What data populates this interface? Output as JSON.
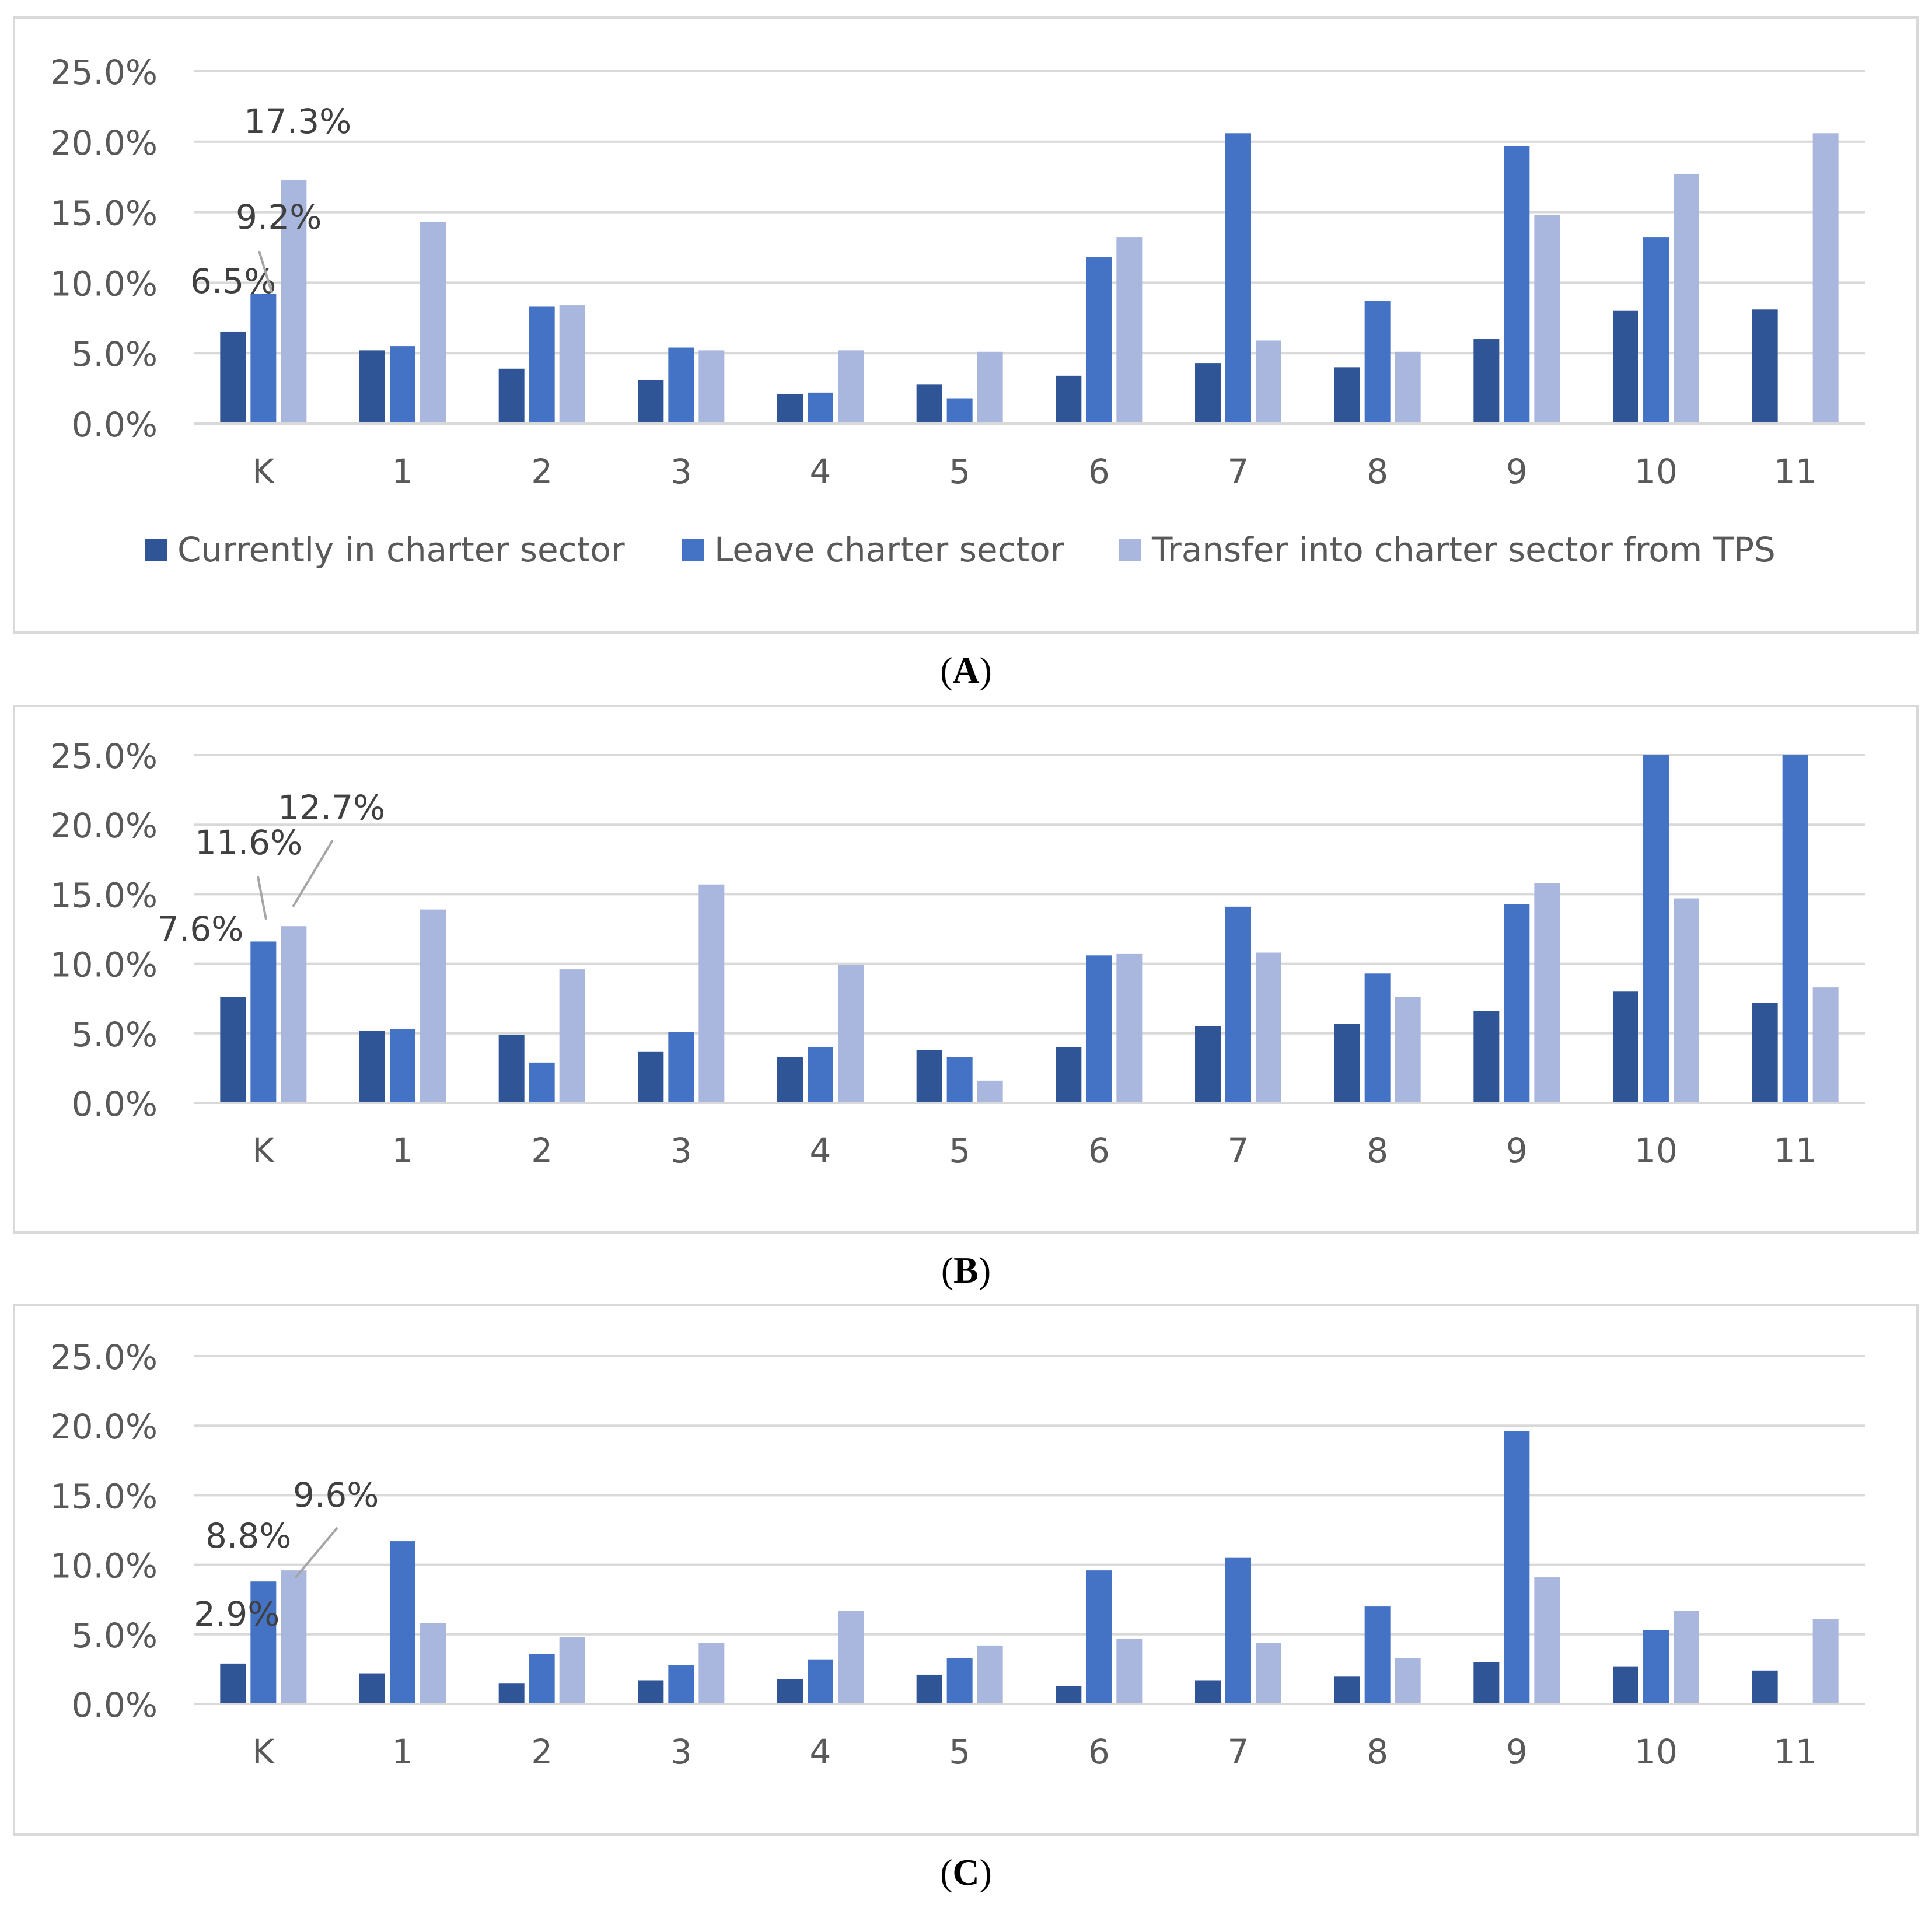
{
  "colors": {
    "current": "#2F5597",
    "leave": "#4472C4",
    "transfer": "#A9B6DD",
    "grid": "#D9D9D9",
    "axis_text": "#595959",
    "label_text": "#404040",
    "leader": "#A6A6A6"
  },
  "legend": {
    "current": "Currently in charter sector",
    "leave": "Leave charter sector",
    "transfer": "Transfer into charter sector from TPS"
  },
  "chart_data": [
    {
      "type": "bar",
      "panel": "A",
      "caption": "A",
      "categories": [
        "K",
        "1",
        "2",
        "3",
        "4",
        "5",
        "6",
        "7",
        "8",
        "9",
        "10",
        "11"
      ],
      "y_ticks": [
        "0.0%",
        "5.0%",
        "10.0%",
        "15.0%",
        "20.0%",
        "25.0%"
      ],
      "ylim": [
        0,
        25
      ],
      "series": [
        {
          "name": "Currently in charter sector",
          "values": [
            6.5,
            5.2,
            3.9,
            3.1,
            2.1,
            2.8,
            3.4,
            4.3,
            4.0,
            6.0,
            8.0,
            8.1
          ]
        },
        {
          "name": "Leave charter sector",
          "values": [
            9.2,
            5.5,
            8.3,
            5.4,
            2.2,
            1.8,
            11.8,
            20.6,
            8.7,
            19.7,
            13.2,
            0
          ]
        },
        {
          "name": "Transfer into charter sector from TPS",
          "values": [
            17.3,
            14.3,
            8.4,
            5.2,
            5.2,
            5.1,
            13.2,
            5.9,
            5.1,
            14.8,
            17.7,
            20.6
          ]
        }
      ],
      "data_labels": [
        "6.5%",
        "9.2%",
        "17.3%"
      ],
      "legend_shown": true
    },
    {
      "type": "bar",
      "panel": "B",
      "caption": "B",
      "categories": [
        "K",
        "1",
        "2",
        "3",
        "4",
        "5",
        "6",
        "7",
        "8",
        "9",
        "10",
        "11"
      ],
      "y_ticks": [
        "0.0%",
        "5.0%",
        "10.0%",
        "15.0%",
        "20.0%",
        "25.0%"
      ],
      "ylim": [
        0,
        25
      ],
      "series": [
        {
          "name": "Currently in charter sector",
          "values": [
            7.6,
            5.2,
            4.9,
            3.7,
            3.3,
            3.8,
            4.0,
            5.5,
            5.7,
            6.6,
            8.0,
            7.2
          ]
        },
        {
          "name": "Leave charter sector",
          "values": [
            11.6,
            5.3,
            2.9,
            5.1,
            4.0,
            3.3,
            10.6,
            14.1,
            9.3,
            14.3,
            25.0,
            25.0
          ]
        },
        {
          "name": "Transfer into charter sector from TPS",
          "values": [
            12.7,
            13.9,
            9.6,
            15.7,
            9.9,
            1.6,
            10.7,
            10.8,
            7.6,
            15.8,
            14.7,
            8.3
          ]
        }
      ],
      "data_labels": [
        "7.6%",
        "11.6%",
        "12.7%"
      ],
      "legend_shown": false
    },
    {
      "type": "bar",
      "panel": "C",
      "caption": "C",
      "categories": [
        "K",
        "1",
        "2",
        "3",
        "4",
        "5",
        "6",
        "7",
        "8",
        "9",
        "10",
        "11"
      ],
      "y_ticks": [
        "0.0%",
        "5.0%",
        "10.0%",
        "15.0%",
        "20.0%",
        "25.0%"
      ],
      "ylim": [
        0,
        25
      ],
      "series": [
        {
          "name": "Currently in charter sector",
          "values": [
            2.9,
            2.2,
            1.5,
            1.7,
            1.8,
            2.1,
            1.3,
            1.7,
            2.0,
            3.0,
            2.7,
            2.4
          ]
        },
        {
          "name": "Leave charter sector",
          "values": [
            8.8,
            11.7,
            3.6,
            2.8,
            3.2,
            3.3,
            9.6,
            10.5,
            7.0,
            19.6,
            5.3,
            0
          ]
        },
        {
          "name": "Transfer into charter sector from TPS",
          "values": [
            9.6,
            5.8,
            4.8,
            4.4,
            6.7,
            4.2,
            4.7,
            4.4,
            3.3,
            9.1,
            6.7,
            6.1
          ]
        }
      ],
      "data_labels": [
        "2.9%",
        "8.8%",
        "9.6%"
      ],
      "legend_shown": false
    }
  ]
}
